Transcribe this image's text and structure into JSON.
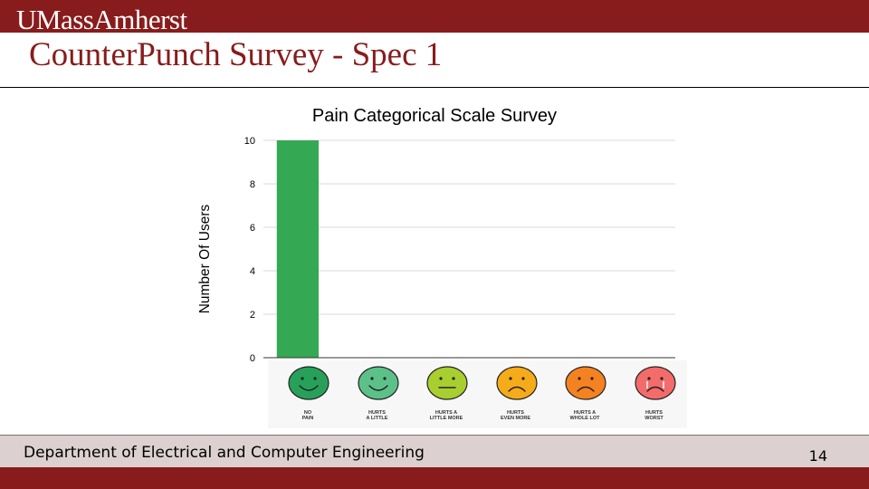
{
  "header": {
    "logo_text": "UMassAmherst",
    "title": "CounterPunch Survey - Spec 1"
  },
  "colors": {
    "brand_maroon": "#881c1c",
    "footer_bg": "#dcd0d0",
    "bar": "#34a853",
    "grid": "#d9d9d9"
  },
  "chart_data": {
    "type": "bar",
    "title": "Pain Categorical Scale Survey",
    "xlabel": "",
    "ylabel": "Number Of Users",
    "categories": [
      "No Pain",
      "Hurts a Little",
      "Hurts a Little More",
      "Hurts Even More",
      "Hurts a Whole Lot",
      "Hurts Worst"
    ],
    "values": [
      10,
      0,
      0,
      0,
      0,
      0
    ],
    "ylim": [
      0,
      10
    ],
    "yticks": [
      0,
      2,
      4,
      6,
      8,
      10
    ],
    "grid": true,
    "legend": "none"
  },
  "faces": [
    {
      "label": "NO\nPAIN",
      "color": "#27a15a",
      "mouth": "smile",
      "icon": "very-happy-face-icon"
    },
    {
      "label": "HURTS\nA LITTLE",
      "color": "#5cc189",
      "mouth": "smile",
      "icon": "happy-face-icon"
    },
    {
      "label": "HURTS A\nLITTLE MORE",
      "color": "#a8cf2f",
      "mouth": "flat",
      "icon": "neutral-face-icon"
    },
    {
      "label": "HURTS\nEVEN MORE",
      "color": "#f5ab1a",
      "mouth": "frown",
      "icon": "sad-face-icon"
    },
    {
      "label": "HURTS A\nWHOLE LOT",
      "color": "#f58220",
      "mouth": "frown",
      "icon": "very-sad-face-icon"
    },
    {
      "label": "HURTS\nWORST",
      "color": "#f46b6b",
      "mouth": "cry",
      "icon": "crying-face-icon"
    }
  ],
  "footer": {
    "department": "Department of Electrical and Computer Engineering",
    "page_number": "14"
  }
}
